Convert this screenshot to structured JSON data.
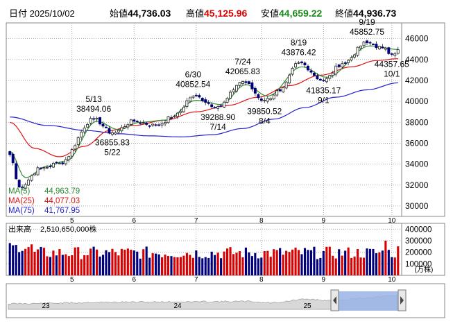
{
  "header": {
    "date_label": "日付",
    "date": "2025/10/02",
    "open_label": "始値",
    "open": "44,736.03",
    "high_label": "高値",
    "high": "45,125.96",
    "low_label": "安値",
    "low": "44,659.22",
    "close_label": "終値",
    "close": "44,936.73"
  },
  "colors": {
    "up": "#d80000",
    "down": "#00007c",
    "ma5": "#2d8a2d",
    "ma25": "#e01010",
    "ma75": "#2020d0",
    "grid": "#9a9a9a",
    "navigator_fill": "#9ab4e8"
  },
  "chart_data": [
    {
      "type": "candlestick",
      "x_ticks": [
        "5",
        "6",
        "7",
        "8",
        "9",
        "10"
      ],
      "y_ticks": [
        "46000",
        "44000",
        "42000",
        "40000",
        "38000",
        "36000",
        "34000",
        "32000",
        "30000"
      ],
      "ylim": [
        29000,
        47500
      ],
      "legend": [
        {
          "label": "MA(5)",
          "value": "44,963.79",
          "key": "ma5"
        },
        {
          "label": "MA(25)",
          "value": "44,077.03",
          "key": "ma25"
        },
        {
          "label": "MA(75)",
          "value": "41,767.95",
          "key": "ma75"
        }
      ],
      "annotations": [
        {
          "text": "5/13",
          "value": "38494.06",
          "price": 38494.06,
          "day": 27,
          "place": "above"
        },
        {
          "text": "5/22",
          "value": "36855.83",
          "price": 36855.83,
          "day": 33,
          "place": "below"
        },
        {
          "text": "6/30",
          "value": "40852.54",
          "price": 40852.54,
          "day": 59,
          "place": "above"
        },
        {
          "text": "7/14",
          "value": "39288.90",
          "price": 39288.9,
          "day": 67,
          "place": "below"
        },
        {
          "text": "7/24",
          "value": "42065.83",
          "price": 42065.83,
          "day": 75,
          "place": "above"
        },
        {
          "text": "8/4",
          "value": "39850.52",
          "price": 39850.52,
          "day": 82,
          "place": "below"
        },
        {
          "text": "8/19",
          "value": "43876.42",
          "price": 43876.42,
          "day": 93,
          "place": "above"
        },
        {
          "text": "9/1",
          "value": "41835.17",
          "price": 41835.17,
          "day": 101,
          "place": "below"
        },
        {
          "text": "9/19",
          "value": "45852.75",
          "price": 45852.75,
          "day": 115,
          "place": "above"
        },
        {
          "text": "10/1",
          "value": "44357.65",
          "price": 44357.65,
          "day": 123,
          "place": "below"
        }
      ],
      "pivots": [
        [
          0,
          34900
        ],
        [
          3,
          31800
        ],
        [
          10,
          33600
        ],
        [
          16,
          34100
        ],
        [
          27,
          38300
        ],
        [
          33,
          37000
        ],
        [
          40,
          38100
        ],
        [
          47,
          37700
        ],
        [
          53,
          38600
        ],
        [
          59,
          40500
        ],
        [
          67,
          39500
        ],
        [
          75,
          41900
        ],
        [
          82,
          40100
        ],
        [
          87,
          41000
        ],
        [
          93,
          43700
        ],
        [
          101,
          42000
        ],
        [
          107,
          43600
        ],
        [
          115,
          45600
        ],
        [
          120,
          45100
        ],
        [
          123,
          44500
        ],
        [
          125,
          44936.73
        ]
      ],
      "ma5_pivots": [
        [
          0,
          35200
        ],
        [
          5,
          32700
        ],
        [
          12,
          33800
        ],
        [
          18,
          34300
        ],
        [
          28,
          38100
        ],
        [
          35,
          37300
        ],
        [
          42,
          38000
        ],
        [
          50,
          38200
        ],
        [
          60,
          40100
        ],
        [
          68,
          39700
        ],
        [
          76,
          41600
        ],
        [
          83,
          40500
        ],
        [
          94,
          43300
        ],
        [
          102,
          42300
        ],
        [
          116,
          45300
        ],
        [
          125,
          44963.79
        ]
      ],
      "ma25_pivots": [
        [
          0,
          38000
        ],
        [
          8,
          35500
        ],
        [
          16,
          34700
        ],
        [
          24,
          35700
        ],
        [
          32,
          37200
        ],
        [
          40,
          37700
        ],
        [
          50,
          38200
        ],
        [
          60,
          39000
        ],
        [
          70,
          39600
        ],
        [
          80,
          40400
        ],
        [
          90,
          41500
        ],
        [
          100,
          42500
        ],
        [
          110,
          43300
        ],
        [
          118,
          43900
        ],
        [
          125,
          44077.03
        ]
      ],
      "ma75_pivots": [
        [
          0,
          38500
        ],
        [
          12,
          37700
        ],
        [
          25,
          37200
        ],
        [
          35,
          36900
        ],
        [
          45,
          36700
        ],
        [
          55,
          36600
        ],
        [
          65,
          36800
        ],
        [
          75,
          37400
        ],
        [
          85,
          38300
        ],
        [
          95,
          39400
        ],
        [
          105,
          40400
        ],
        [
          115,
          41100
        ],
        [
          125,
          41767.95
        ]
      ]
    },
    {
      "type": "bar",
      "title": "出来高",
      "value": "2,510,650,000株",
      "y_ticks": [
        "400000",
        "300000",
        "200000",
        "100000"
      ],
      "unit": "(万株)",
      "ylim": [
        0,
        450000
      ],
      "x_ticks": [
        "5",
        "6",
        "7",
        "8",
        "9",
        "10"
      ],
      "last": 251065
    }
  ],
  "navigator": {
    "labels": [
      "23",
      "24",
      "25"
    ]
  }
}
